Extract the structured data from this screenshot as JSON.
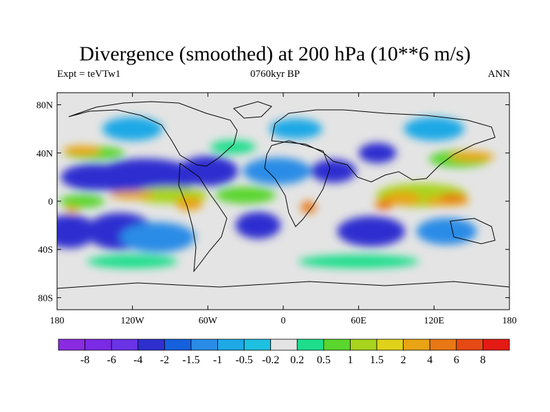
{
  "chart_data": {
    "type": "heatmap",
    "title": "Divergence (smoothed) at 200 hPa (10**6 m/s)",
    "left_label": "Expt = teVTw1",
    "center_label": "0760kyr BP",
    "right_label": "ANN",
    "x": {
      "min": -180,
      "max": 180,
      "ticks": [
        {
          "value": -180,
          "label": "180"
        },
        {
          "value": -120,
          "label": "120W"
        },
        {
          "value": -60,
          "label": "60W"
        },
        {
          "value": 0,
          "label": "0"
        },
        {
          "value": 60,
          "label": "60E"
        },
        {
          "value": 120,
          "label": "120E"
        },
        {
          "value": 180,
          "label": "180"
        }
      ]
    },
    "y": {
      "min": -90,
      "max": 90,
      "ticks": [
        {
          "value": 80,
          "label": "80N"
        },
        {
          "value": 40,
          "label": "40N"
        },
        {
          "value": 0,
          "label": "0"
        },
        {
          "value": -40,
          "label": "40S"
        },
        {
          "value": -80,
          "label": "80S"
        }
      ]
    },
    "colorbar": {
      "colors": [
        "#8a2be2",
        "#7b2ae6",
        "#6a33e6",
        "#2f2fd0",
        "#1560dd",
        "#2a8ce6",
        "#1ea9e6",
        "#1ec0e0",
        "#e4e4e4",
        "#1ede8c",
        "#5ad62e",
        "#a8d41e",
        "#e0d21a",
        "#e8a414",
        "#e87814",
        "#e64a14",
        "#e41a14"
      ],
      "labels": [
        "-8",
        "-6",
        "-4",
        "-2",
        "-1.5",
        "-1",
        "-0.5",
        "-0.2",
        "0.2",
        "0.5",
        "1",
        "1.5",
        "2",
        "4",
        "6",
        "8"
      ]
    },
    "field": [
      {
        "lon": -170,
        "lat": -25,
        "w": 35,
        "h": 20,
        "v": -3
      },
      {
        "lon": -130,
        "lat": -25,
        "w": 45,
        "h": 22,
        "v": -3
      },
      {
        "lon": -110,
        "lat": 20,
        "w": 70,
        "h": 22,
        "v": -3
      },
      {
        "lon": -150,
        "lat": 20,
        "w": 45,
        "h": 16,
        "v": -2
      },
      {
        "lon": -60,
        "lat": 25,
        "w": 40,
        "h": 18,
        "v": -3
      },
      {
        "lon": -20,
        "lat": -20,
        "w": 30,
        "h": 16,
        "v": -3
      },
      {
        "lon": 70,
        "lat": -25,
        "w": 45,
        "h": 18,
        "v": -3
      },
      {
        "lon": 40,
        "lat": 25,
        "w": 30,
        "h": 14,
        "v": -3
      },
      {
        "lon": 75,
        "lat": 40,
        "w": 25,
        "h": 12,
        "v": -3
      },
      {
        "lon": -100,
        "lat": -30,
        "w": 50,
        "h": 18,
        "v": -1
      },
      {
        "lon": -5,
        "lat": 25,
        "w": 45,
        "h": 16,
        "v": -1
      },
      {
        "lon": 130,
        "lat": -25,
        "w": 40,
        "h": 16,
        "v": -1
      },
      {
        "lon": 10,
        "lat": 60,
        "w": 35,
        "h": 12,
        "v": -0.5
      },
      {
        "lon": -120,
        "lat": 60,
        "w": 40,
        "h": 14,
        "v": -0.5
      },
      {
        "lon": 120,
        "lat": 60,
        "w": 40,
        "h": 14,
        "v": -0.5
      },
      {
        "lon": -160,
        "lat": 0,
        "w": 30,
        "h": 8,
        "v": 1
      },
      {
        "lon": -90,
        "lat": 5,
        "w": 50,
        "h": 10,
        "v": 1.5
      },
      {
        "lon": -30,
        "lat": 5,
        "w": 40,
        "h": 10,
        "v": 1
      },
      {
        "lon": 110,
        "lat": 5,
        "w": 60,
        "h": 14,
        "v": 1.5
      },
      {
        "lon": -150,
        "lat": 40,
        "w": 40,
        "h": 8,
        "v": 1
      },
      {
        "lon": 140,
        "lat": 35,
        "w": 40,
        "h": 10,
        "v": 1
      },
      {
        "lon": -40,
        "lat": 45,
        "w": 30,
        "h": 8,
        "v": 0.5
      },
      {
        "lon": -120,
        "lat": -50,
        "w": 60,
        "h": 8,
        "v": 0.5
      },
      {
        "lon": 60,
        "lat": -50,
        "w": 80,
        "h": 8,
        "v": 0.5
      },
      {
        "lon": -160,
        "lat": 42,
        "w": 25,
        "h": 6,
        "v": 4
      },
      {
        "lon": 150,
        "lat": 37,
        "w": 30,
        "h": 6,
        "v": 4
      },
      {
        "lon": -75,
        "lat": -2,
        "w": 18,
        "h": 8,
        "v": 4
      },
      {
        "lon": -120,
        "lat": 5,
        "w": 30,
        "h": 5,
        "v": 4
      },
      {
        "lon": 95,
        "lat": 2,
        "w": 25,
        "h": 8,
        "v": 4
      },
      {
        "lon": 130,
        "lat": 0,
        "w": 30,
        "h": 6,
        "v": 4
      },
      {
        "lon": 20,
        "lat": -5,
        "w": 10,
        "h": 7,
        "v": 6
      },
      {
        "lon": 80,
        "lat": -3,
        "w": 12,
        "h": 6,
        "v": 6
      },
      {
        "lon": 135,
        "lat": 3,
        "w": 18,
        "h": 5,
        "v": 6
      },
      {
        "lon": -168,
        "lat": -7,
        "w": 10,
        "h": 4,
        "v": 4
      }
    ]
  }
}
